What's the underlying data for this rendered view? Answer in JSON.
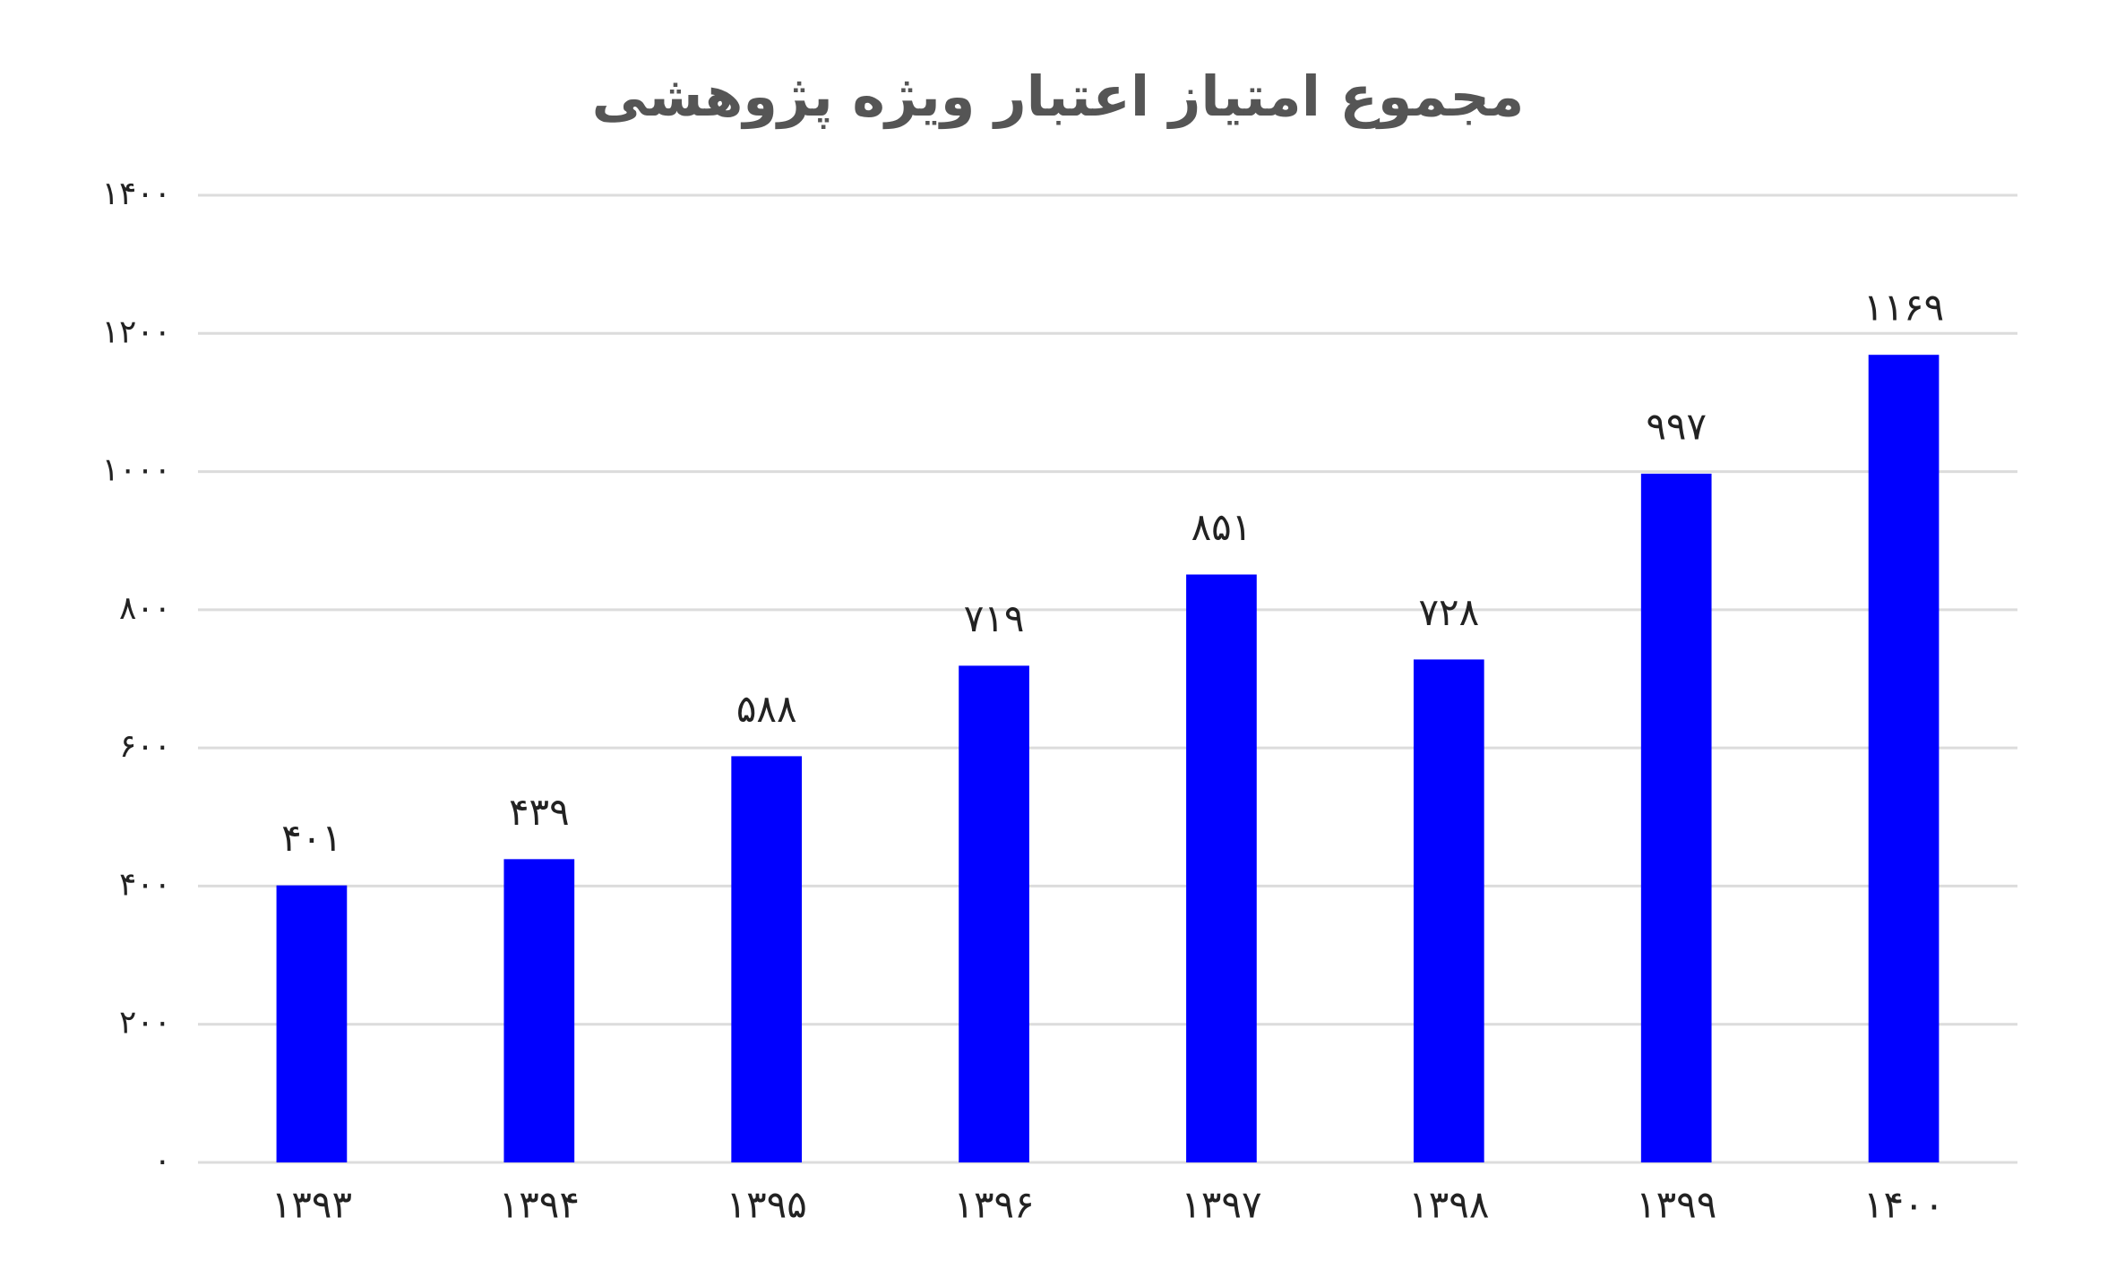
{
  "chart_data": {
    "type": "bar",
    "title": "مجموع امتیاز اعتبار ویژه پژوهشی",
    "categories": [
      "۱۳۹۳",
      "۱۳۹۴",
      "۱۳۹۵",
      "۱۳۹۶",
      "۱۳۹۷",
      "۱۳۹۸",
      "۱۳۹۹",
      "۱۴۰۰"
    ],
    "values": [
      401,
      439,
      588,
      719,
      851,
      728,
      997,
      1169
    ],
    "value_labels": [
      "۴۰۱",
      "۴۳۹",
      "۵۸۸",
      "۷۱۹",
      "۸۵۱",
      "۷۲۸",
      "۹۹۷",
      "۱۱۶۹"
    ],
    "color": "#0000ff",
    "ylim": [
      0,
      1400
    ],
    "yticks": [
      {
        "value": 0,
        "label": "۰"
      },
      {
        "value": 200,
        "label": "۲۰۰"
      },
      {
        "value": 400,
        "label": "۴۰۰"
      },
      {
        "value": 600,
        "label": "۶۰۰"
      },
      {
        "value": 800,
        "label": "۸۰۰"
      },
      {
        "value": 1000,
        "label": "۱۰۰۰"
      },
      {
        "value": 1200,
        "label": "۱۲۰۰"
      },
      {
        "value": 1400,
        "label": "۱۴۰۰"
      }
    ],
    "grid": true
  }
}
